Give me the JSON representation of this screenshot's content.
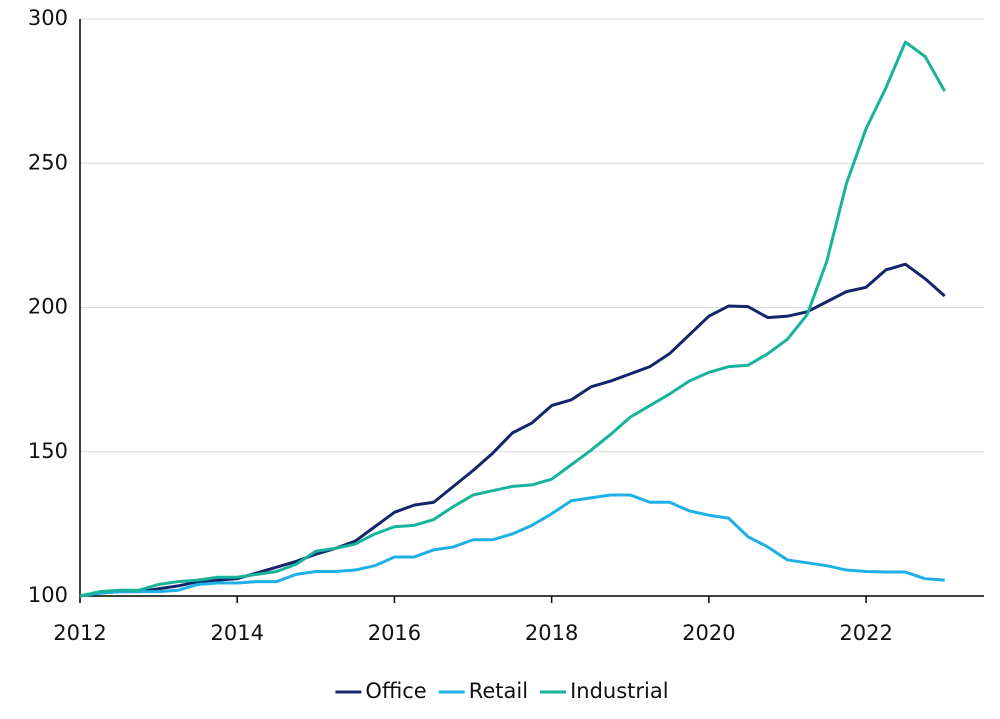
{
  "chart_data": {
    "type": "line",
    "x": [
      2012,
      2012.25,
      2012.5,
      2012.75,
      2013,
      2013.25,
      2013.5,
      2013.75,
      2014,
      2014.25,
      2014.5,
      2014.75,
      2015,
      2015.25,
      2015.5,
      2015.75,
      2016,
      2016.25,
      2016.5,
      2016.75,
      2017,
      2017.25,
      2017.5,
      2017.75,
      2018,
      2018.25,
      2018.5,
      2018.75,
      2019,
      2019.25,
      2019.5,
      2019.75,
      2020,
      2020.25,
      2020.5,
      2020.75,
      2021,
      2021.25,
      2021.5,
      2021.75,
      2022,
      2022.25,
      2022.5,
      2022.75,
      2023
    ],
    "series": [
      {
        "name": "Office",
        "color": "#14256b",
        "values": [
          100,
          101,
          101.5,
          101.5,
          102.5,
          103.5,
          105,
          105.5,
          106,
          108,
          110,
          112,
          114.5,
          116.5,
          119,
          124,
          129,
          131.5,
          132.5,
          138,
          143.5,
          149.5,
          156.5,
          160,
          166,
          168,
          172.5,
          174.5,
          177,
          179.5,
          184,
          190.5,
          197,
          200.5,
          200.3,
          196.5,
          197,
          198.5,
          202,
          205.5,
          207,
          213,
          215,
          210,
          204
        ]
      },
      {
        "name": "Retail",
        "color": "#1fb0e6",
        "values": [
          100,
          101,
          101.5,
          101.5,
          101.5,
          102,
          104,
          104.5,
          104.5,
          105,
          105,
          107.5,
          108.5,
          108.5,
          109,
          110.5,
          113.5,
          113.5,
          116,
          117,
          119.5,
          119.5,
          121.5,
          124.5,
          128.5,
          133,
          134,
          135,
          135,
          132.5,
          132.5,
          129.5,
          128,
          127,
          120.5,
          117,
          112.5,
          111.5,
          110.5,
          109,
          108.5,
          108.3,
          108.3,
          106,
          105.5
        ]
      },
      {
        "name": "Industrial",
        "color": "#17b39a",
        "values": [
          100,
          101.5,
          102,
          102,
          104,
          105,
          105.5,
          106.5,
          106.5,
          107.5,
          108.5,
          111,
          115.5,
          116.5,
          118,
          121.5,
          124,
          124.5,
          126.5,
          131,
          135,
          136.5,
          138,
          138.5,
          140.5,
          145.5,
          150.5,
          156,
          162,
          166,
          170,
          174.5,
          177.5,
          179.5,
          180,
          184,
          189,
          197.5,
          216,
          243,
          262,
          276,
          292,
          287,
          275
        ]
      }
    ],
    "xlim": [
      2012,
      2023.5
    ],
    "xticks": [
      2012,
      2014,
      2016,
      2018,
      2020,
      2022
    ],
    "ylim": [
      100,
      300
    ],
    "yticks": [
      100,
      150,
      200,
      250,
      300
    ],
    "grid": true,
    "legend": "bottom"
  }
}
